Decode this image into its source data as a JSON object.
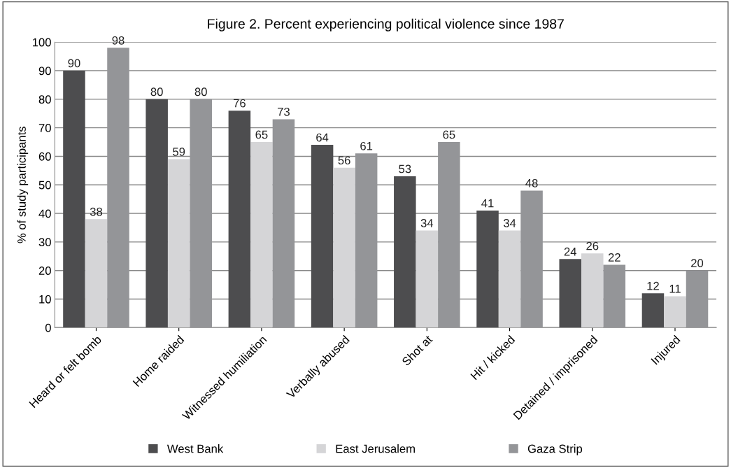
{
  "chart_data": {
    "type": "bar",
    "title": "Figure 2. Percent experiencing political violence since 1987",
    "ylabel": "% of study participants",
    "categories": [
      "Heard or felt bomb",
      "Home raided",
      "Witnessed humiliation",
      "Verbally abused",
      "Shot at",
      "Hit / kicked",
      "Detained / imprisoned",
      "Injured"
    ],
    "series": [
      {
        "name": "West Bank",
        "color": "#4d4d4f",
        "values": [
          90,
          80,
          76,
          64,
          53,
          41,
          24,
          12
        ]
      },
      {
        "name": "East Jerusalem",
        "color": "#d5d5d7",
        "values": [
          38,
          59,
          65,
          56,
          34,
          34,
          26,
          11
        ]
      },
      {
        "name": "Gaza Strip",
        "color": "#949598",
        "values": [
          98,
          80,
          73,
          61,
          65,
          48,
          22,
          20
        ]
      }
    ],
    "ylim": [
      0,
      100
    ],
    "yticks": [
      0,
      10,
      20,
      30,
      40,
      50,
      60,
      70,
      80,
      90,
      100
    ],
    "grid": "y",
    "legend": "bottom",
    "data_labels": true
  }
}
